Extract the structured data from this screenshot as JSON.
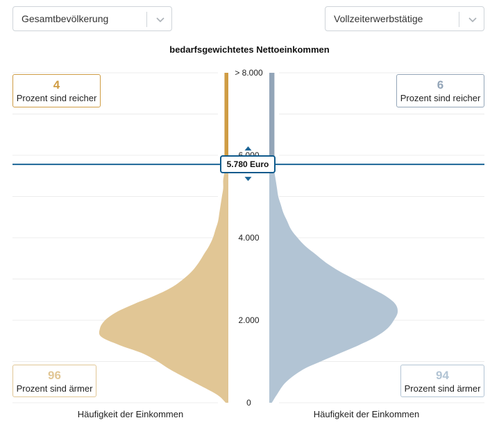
{
  "filters": {
    "left": {
      "value": "Gesamtbevölkerung"
    },
    "right": {
      "value": "Vollzeiterwerbstätige"
    }
  },
  "chart_data": {
    "type": "area",
    "title": "bedarfsgewichtetes Nettoeinkommen",
    "ylabel": "",
    "y_ticks": [
      "0",
      "2.000",
      "4.000",
      "6.000",
      "> 8.000"
    ],
    "ylim": [
      0,
      8000
    ],
    "grid": true,
    "marker": {
      "value": 5780,
      "label": "5.780 Euro",
      "color": "#1a6496"
    },
    "series": [
      {
        "side": "left",
        "color_above": "#cf9c44",
        "color_below": "#e1c695",
        "xlabel": "Häufigkeit der Einkommen",
        "income": [
          0,
          200,
          500,
          800,
          1000,
          1200,
          1400,
          1600,
          1800,
          2000,
          2200,
          2400,
          2600,
          2800,
          3000,
          3200,
          3400,
          3600,
          3800,
          4000,
          4200,
          4400,
          4600,
          4800,
          5000,
          5200,
          5400,
          5600,
          5780,
          6000,
          6300,
          6600,
          7000,
          7500,
          8000
        ],
        "density": [
          0.02,
          0.09,
          0.27,
          0.45,
          0.55,
          0.67,
          0.85,
          0.99,
          1.0,
          0.96,
          0.87,
          0.73,
          0.57,
          0.44,
          0.35,
          0.28,
          0.23,
          0.19,
          0.15,
          0.12,
          0.1,
          0.08,
          0.07,
          0.06,
          0.05,
          0.04,
          0.04,
          0.03,
          0.03,
          0.03,
          0.03,
          0.03,
          0.03,
          0.03,
          0.03
        ]
      },
      {
        "side": "right",
        "color_above": "#93a5b8",
        "color_below": "#b2c4d4",
        "xlabel": "Häufigkeit der Einkommen",
        "income": [
          0,
          200,
          500,
          800,
          1000,
          1200,
          1400,
          1600,
          1800,
          2000,
          2200,
          2400,
          2600,
          2800,
          3000,
          3200,
          3400,
          3600,
          3800,
          4000,
          4200,
          4400,
          4600,
          4800,
          5000,
          5200,
          5400,
          5600,
          5780,
          6000,
          6300,
          6600,
          7000,
          7500,
          8000
        ],
        "density": [
          0.02,
          0.06,
          0.13,
          0.26,
          0.4,
          0.55,
          0.7,
          0.83,
          0.92,
          0.97,
          1.0,
          0.98,
          0.9,
          0.78,
          0.66,
          0.54,
          0.44,
          0.36,
          0.28,
          0.22,
          0.17,
          0.14,
          0.11,
          0.09,
          0.07,
          0.06,
          0.05,
          0.04,
          0.04,
          0.04,
          0.04,
          0.04,
          0.04,
          0.04,
          0.04
        ]
      }
    ]
  },
  "summary": {
    "left_richer": {
      "value": "4",
      "text": "Prozent sind reicher",
      "color": "#cf9c44"
    },
    "right_richer": {
      "value": "6",
      "text": "Prozent sind reicher",
      "color": "#93a5b8"
    },
    "left_poorer": {
      "value": "96",
      "text": "Prozent sind ärmer",
      "color": "#e1c695"
    },
    "right_poorer": {
      "value": "94",
      "text": "Prozent sind ärmer",
      "color": "#b2c4d4"
    }
  }
}
